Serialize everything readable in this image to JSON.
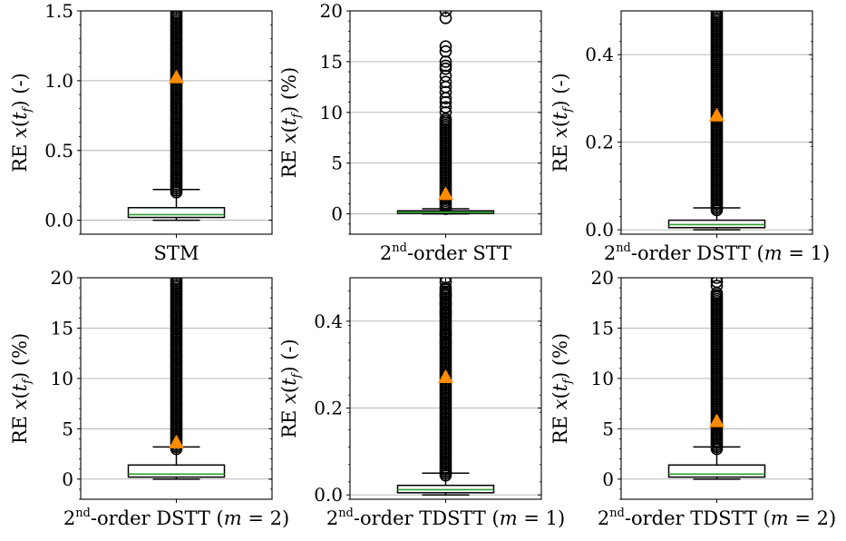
{
  "chart_data": [
    {
      "type": "box",
      "category": "STM",
      "ylabel": "RE x(t_f) (-)",
      "ylabel_parts": {
        "prefix": "RE ",
        "var": "x",
        "open": "(",
        "t": "t",
        "sub": "f",
        "close": ")",
        "unit": " (-)"
      },
      "ylim": [
        -0.1,
        1.5
      ],
      "yticks": [
        0.0,
        0.5,
        1.0,
        1.5
      ],
      "ytick_labels": [
        "0.0",
        "0.5",
        "1.0",
        "1.5"
      ],
      "grid": true,
      "box": {
        "q1": 0.02,
        "median": 0.04,
        "q3": 0.09,
        "whisker_low": 0.0,
        "whisker_high": 0.22
      },
      "mean": 1.02,
      "fliers_dense_from": 0.2,
      "fliers_dense_to": 1.5,
      "fliers_sparse": []
    },
    {
      "type": "box",
      "category": "2nd-order STT",
      "category_parts": {
        "num": "2",
        "sup": "nd",
        "rest": "-order STT",
        "m": ""
      },
      "ylabel": "RE x(t_f) (%)",
      "ylabel_parts": {
        "prefix": "RE ",
        "var": "x",
        "open": "(",
        "t": "t",
        "sub": "f",
        "close": ")",
        "unit": " (%)"
      },
      "ylim": [
        -2,
        20
      ],
      "yticks": [
        0,
        5,
        10,
        15,
        20
      ],
      "ytick_labels": [
        "0",
        "5",
        "10",
        "15",
        "20"
      ],
      "grid": true,
      "box": {
        "q1": 0.05,
        "median": 0.15,
        "q3": 0.3,
        "whisker_low": 0.0,
        "whisker_high": 0.5
      },
      "mean": 1.9,
      "fliers_dense_from": 0.5,
      "fliers_dense_to": 9.5,
      "fliers_sparse": [
        10.0,
        10.5,
        11.0,
        11.4,
        12.0,
        12.5,
        13.0,
        13.6,
        14.3,
        14.6,
        15.0,
        16.0,
        16.5,
        19.3,
        20.0
      ]
    },
    {
      "type": "box",
      "category": "2nd-order DSTT (m = 1)",
      "category_parts": {
        "num": "2",
        "sup": "nd",
        "rest": "-order DSTT (",
        "m": "m",
        "eq": " = 1)"
      },
      "ylabel": "RE x(t_f) (-)",
      "ylabel_parts": {
        "prefix": "RE ",
        "var": "x",
        "open": "(",
        "t": "t",
        "sub": "f",
        "close": ")",
        "unit": " (-)"
      },
      "ylim": [
        -0.01,
        0.5
      ],
      "yticks": [
        0.0,
        0.2,
        0.4
      ],
      "ytick_labels": [
        "0.0",
        "0.2",
        "0.4"
      ],
      "grid": true,
      "box": {
        "q1": 0.005,
        "median": 0.012,
        "q3": 0.022,
        "whisker_low": 0.0,
        "whisker_high": 0.05
      },
      "mean": 0.26,
      "fliers_dense_from": 0.045,
      "fliers_dense_to": 0.5,
      "fliers_sparse": []
    },
    {
      "type": "box",
      "category": "2nd-order DSTT (m = 2)",
      "category_parts": {
        "num": "2",
        "sup": "nd",
        "rest": "-order DSTT (",
        "m": "m",
        "eq": " = 2)"
      },
      "ylabel": "RE x(t_f) (%)",
      "ylabel_parts": {
        "prefix": "RE ",
        "var": "x",
        "open": "(",
        "t": "t",
        "sub": "f",
        "close": ")",
        "unit": " (%)"
      },
      "ylim": [
        -2,
        20
      ],
      "yticks": [
        0,
        5,
        10,
        15,
        20
      ],
      "ytick_labels": [
        "0",
        "5",
        "10",
        "15",
        "20"
      ],
      "grid": true,
      "box": {
        "q1": 0.2,
        "median": 0.5,
        "q3": 1.4,
        "whisker_low": 0.0,
        "whisker_high": 3.2
      },
      "mean": 3.6,
      "fliers_dense_from": 3.0,
      "fliers_dense_to": 20.0,
      "fliers_sparse": []
    },
    {
      "type": "box",
      "category": "2nd-order TDSTT (m = 1)",
      "category_parts": {
        "num": "2",
        "sup": "nd",
        "rest": "-order TDSTT (",
        "m": "m",
        "eq": " = 1)"
      },
      "ylabel": "RE x(t_f) (-)",
      "ylabel_parts": {
        "prefix": "RE ",
        "var": "x",
        "open": "(",
        "t": "t",
        "sub": "f",
        "close": ")",
        "unit": " (-)"
      },
      "ylim": [
        -0.01,
        0.5
      ],
      "yticks": [
        0.0,
        0.2,
        0.4
      ],
      "ytick_labels": [
        "0.0",
        "0.2",
        "0.4"
      ],
      "grid": true,
      "box": {
        "q1": 0.005,
        "median": 0.012,
        "q3": 0.022,
        "whisker_low": 0.0,
        "whisker_high": 0.05
      },
      "mean": 0.27,
      "fliers_dense_from": 0.045,
      "fliers_dense_to": 0.48,
      "fliers_sparse": [
        0.35,
        0.37,
        0.42,
        0.44,
        0.46,
        0.49,
        0.5
      ]
    },
    {
      "type": "box",
      "category": "2nd-order TDSTT (m = 2)",
      "category_parts": {
        "num": "2",
        "sup": "nd",
        "rest": "-order TDSTT (",
        "m": "m",
        "eq": " = 2)"
      },
      "ylabel": "RE x(t_f) (%)",
      "ylabel_parts": {
        "prefix": "RE ",
        "var": "x",
        "open": "(",
        "t": "t",
        "sub": "f",
        "close": ")",
        "unit": " (%)"
      },
      "ylim": [
        -2,
        20
      ],
      "yticks": [
        0,
        5,
        10,
        15,
        20
      ],
      "ytick_labels": [
        "0",
        "5",
        "10",
        "15",
        "20"
      ],
      "grid": true,
      "box": {
        "q1": 0.2,
        "median": 0.5,
        "q3": 1.4,
        "whisker_low": 0.0,
        "whisker_high": 3.2
      },
      "mean": 5.7,
      "fliers_dense_from": 3.0,
      "fliers_dense_to": 18.5,
      "fliers_sparse": [
        19.2,
        19.6,
        20.0
      ]
    }
  ],
  "style": {
    "box_edge": "#000000",
    "median_color": "#2ca02c",
    "mean_color": "#ff8c00",
    "grid_color": "#b0b0b0",
    "flier_edge": "#000000"
  }
}
